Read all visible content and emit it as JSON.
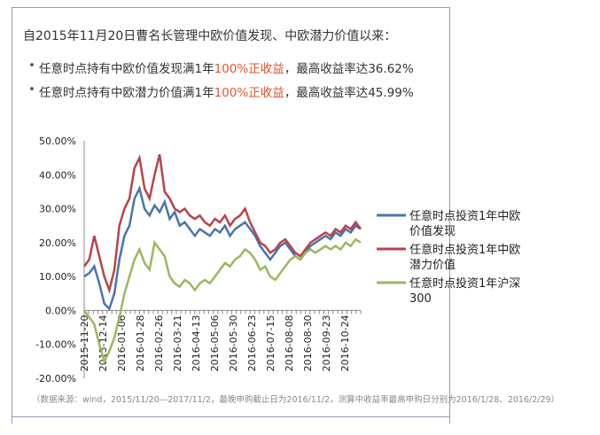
{
  "intro": "自2015年11月20日曹名长管理中欧价值发现、中欧潜力价值以来：",
  "bullets": [
    {
      "a": "任意时点持有中欧价值发现满1年",
      "b": "100%正收益",
      "c": "，最高收益率达36.62%"
    },
    {
      "a": "任意时点持有中欧潜力价值满1年",
      "b": "100%正收益",
      "c": "，最高收益率达45.99%"
    }
  ],
  "note": "（数据来源：wind，2015/11/20—2017/11/2，最晚申购截止日为2016/11/2，测算中收益率最高申购日分别为2016/1/28、2016/2/29）",
  "chart_data": {
    "type": "line",
    "ylim": [
      -20,
      50
    ],
    "yticks": [
      "50.00%",
      "40.00%",
      "30.00%",
      "20.00%",
      "10.00%",
      "0.00%",
      "-10.00%",
      "-20.00%"
    ],
    "xticks": [
      "2015-11-20",
      "2015-12-14",
      "2016-01-06",
      "2016-01-28",
      "2016-02-26",
      "2016-03-21",
      "2016-04-13",
      "2016-05-06",
      "2016-05-30",
      "2016-06-23",
      "2016-07-15",
      "2016-08-08",
      "2016-08-30",
      "2016-09-23",
      "2016-10-24"
    ],
    "series": [
      {
        "name": "任意时点投资1年中欧价值发现",
        "color": "#4a74b0",
        "values": [
          10,
          11,
          13,
          8,
          2,
          0.5,
          5,
          15,
          22,
          25,
          33,
          36,
          30,
          28,
          31,
          29,
          32,
          27,
          29,
          25,
          26,
          24,
          22,
          24,
          23,
          22,
          24,
          23,
          25,
          22,
          24,
          25,
          26,
          24,
          22,
          19,
          17,
          15,
          17,
          19,
          20,
          18,
          16,
          15,
          17,
          19,
          20,
          21,
          22,
          21,
          23,
          22,
          24,
          23,
          25,
          24
        ]
      },
      {
        "name": "任意时点投资1年中欧潜力价值",
        "color": "#b8434a",
        "values": [
          13,
          15,
          22,
          16,
          10,
          6,
          12,
          25,
          30,
          33,
          42,
          45,
          36,
          33,
          40,
          46,
          35,
          33,
          30,
          29,
          30,
          28,
          27,
          28,
          26,
          25,
          27,
          26,
          28,
          25,
          27,
          28,
          30,
          26,
          23,
          20,
          19,
          17,
          18,
          20,
          21,
          19,
          17,
          16,
          18,
          20,
          21,
          22,
          23,
          22,
          24,
          23,
          25,
          24,
          26,
          24
        ]
      },
      {
        "name": "任意时点投资1年沪深300",
        "color": "#9bb860",
        "values": [
          0,
          -2,
          -4,
          -10,
          -15,
          -12,
          -8,
          -2,
          5,
          10,
          15,
          18,
          14,
          12,
          20,
          18,
          16,
          10,
          8,
          7,
          9,
          8,
          6,
          8,
          9,
          8,
          10,
          12,
          14,
          13,
          15,
          16,
          18,
          17,
          15,
          12,
          13,
          10,
          9,
          11,
          13,
          15,
          16,
          15,
          17,
          18,
          17,
          18,
          19,
          18,
          19,
          18,
          20,
          19,
          21,
          20
        ]
      }
    ]
  }
}
